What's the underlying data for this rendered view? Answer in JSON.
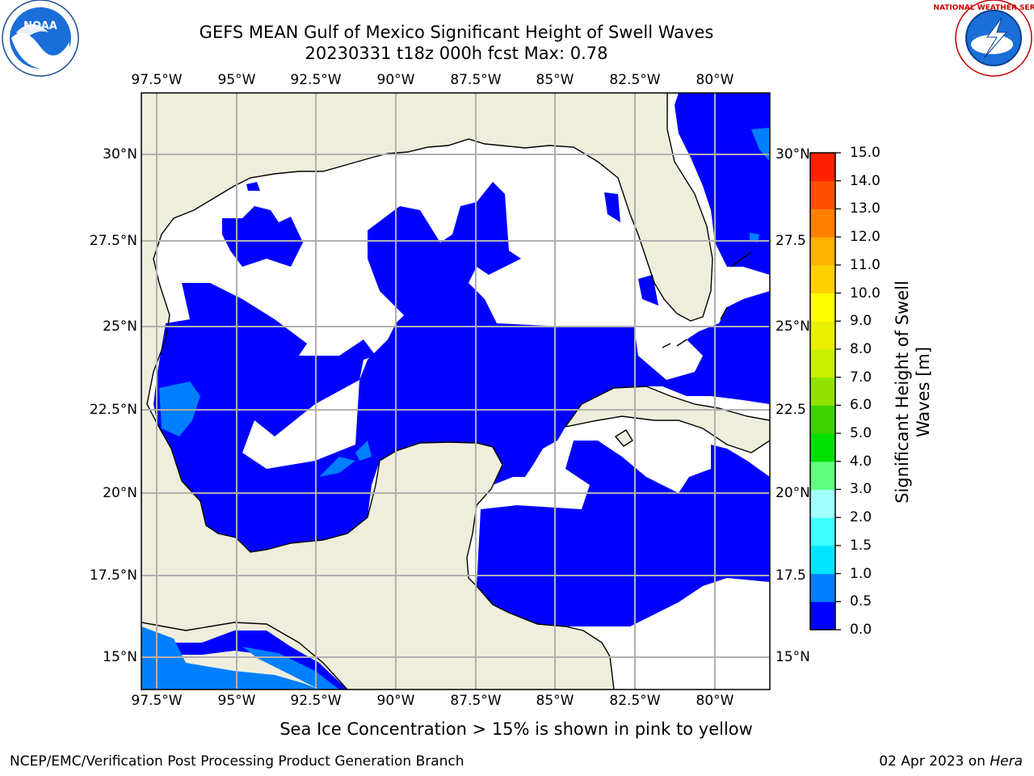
{
  "title_line1": "GEFS MEAN Gulf of Mexico Significant Height of Swell Waves",
  "title_line2": "20230331 t18z 000h fcst   Max: 0.78",
  "logos": {
    "left": "noaa-logo",
    "right": "nws-logo",
    "noaa_text": "NOAA",
    "nws_text": "NATIONAL WEATHER SERVICE"
  },
  "map": {
    "lon_labels": [
      "97.5°W",
      "95°W",
      "92.5°W",
      "90°W",
      "87.5°W",
      "85°W",
      "82.5°W",
      "80°W"
    ],
    "lat_labels_left": [
      "30°N",
      "27.5°N",
      "25°N",
      "22.5°N",
      "20°N",
      "17.5°N",
      "15°N"
    ],
    "lat_labels_right": [
      "30°N",
      "27.5",
      "25°N",
      "22.5",
      "20°N",
      "17.5",
      "15°N"
    ],
    "colors": {
      "land": "#efeedc",
      "ocean_low": "#0000ff",
      "ocean_mid": "#0080ff",
      "calm": "#ffffff",
      "grid": "#b0b0b0"
    }
  },
  "colorbar": {
    "title_line1": "Significant Height of Swell",
    "title_line2": "Waves [m]",
    "ticks": [
      "0.0",
      "0.5",
      "1.0",
      "1.5",
      "2.0",
      "3.0",
      "4.0",
      "5.0",
      "6.0",
      "7.0",
      "8.0",
      "9.0",
      "10.0",
      "11.0",
      "12.0",
      "13.0",
      "14.0",
      "15.0"
    ],
    "colors": [
      "#0000ff",
      "#0080ff",
      "#00e5ff",
      "#40ffff",
      "#a0ffff",
      "#60ff80",
      "#00e000",
      "#40d000",
      "#90e000",
      "#c8f000",
      "#e8f000",
      "#ffff00",
      "#ffd000",
      "#ffb000",
      "#ff8000",
      "#ff5000",
      "#ff2000"
    ]
  },
  "note": "Sea Ice Concentration > 15% is shown in pink to yellow",
  "footer_left": "NCEP/EMC/Verification Post Processing Product Generation Branch",
  "footer_date": "02 Apr 2023 on ",
  "footer_machine": "Hera"
}
